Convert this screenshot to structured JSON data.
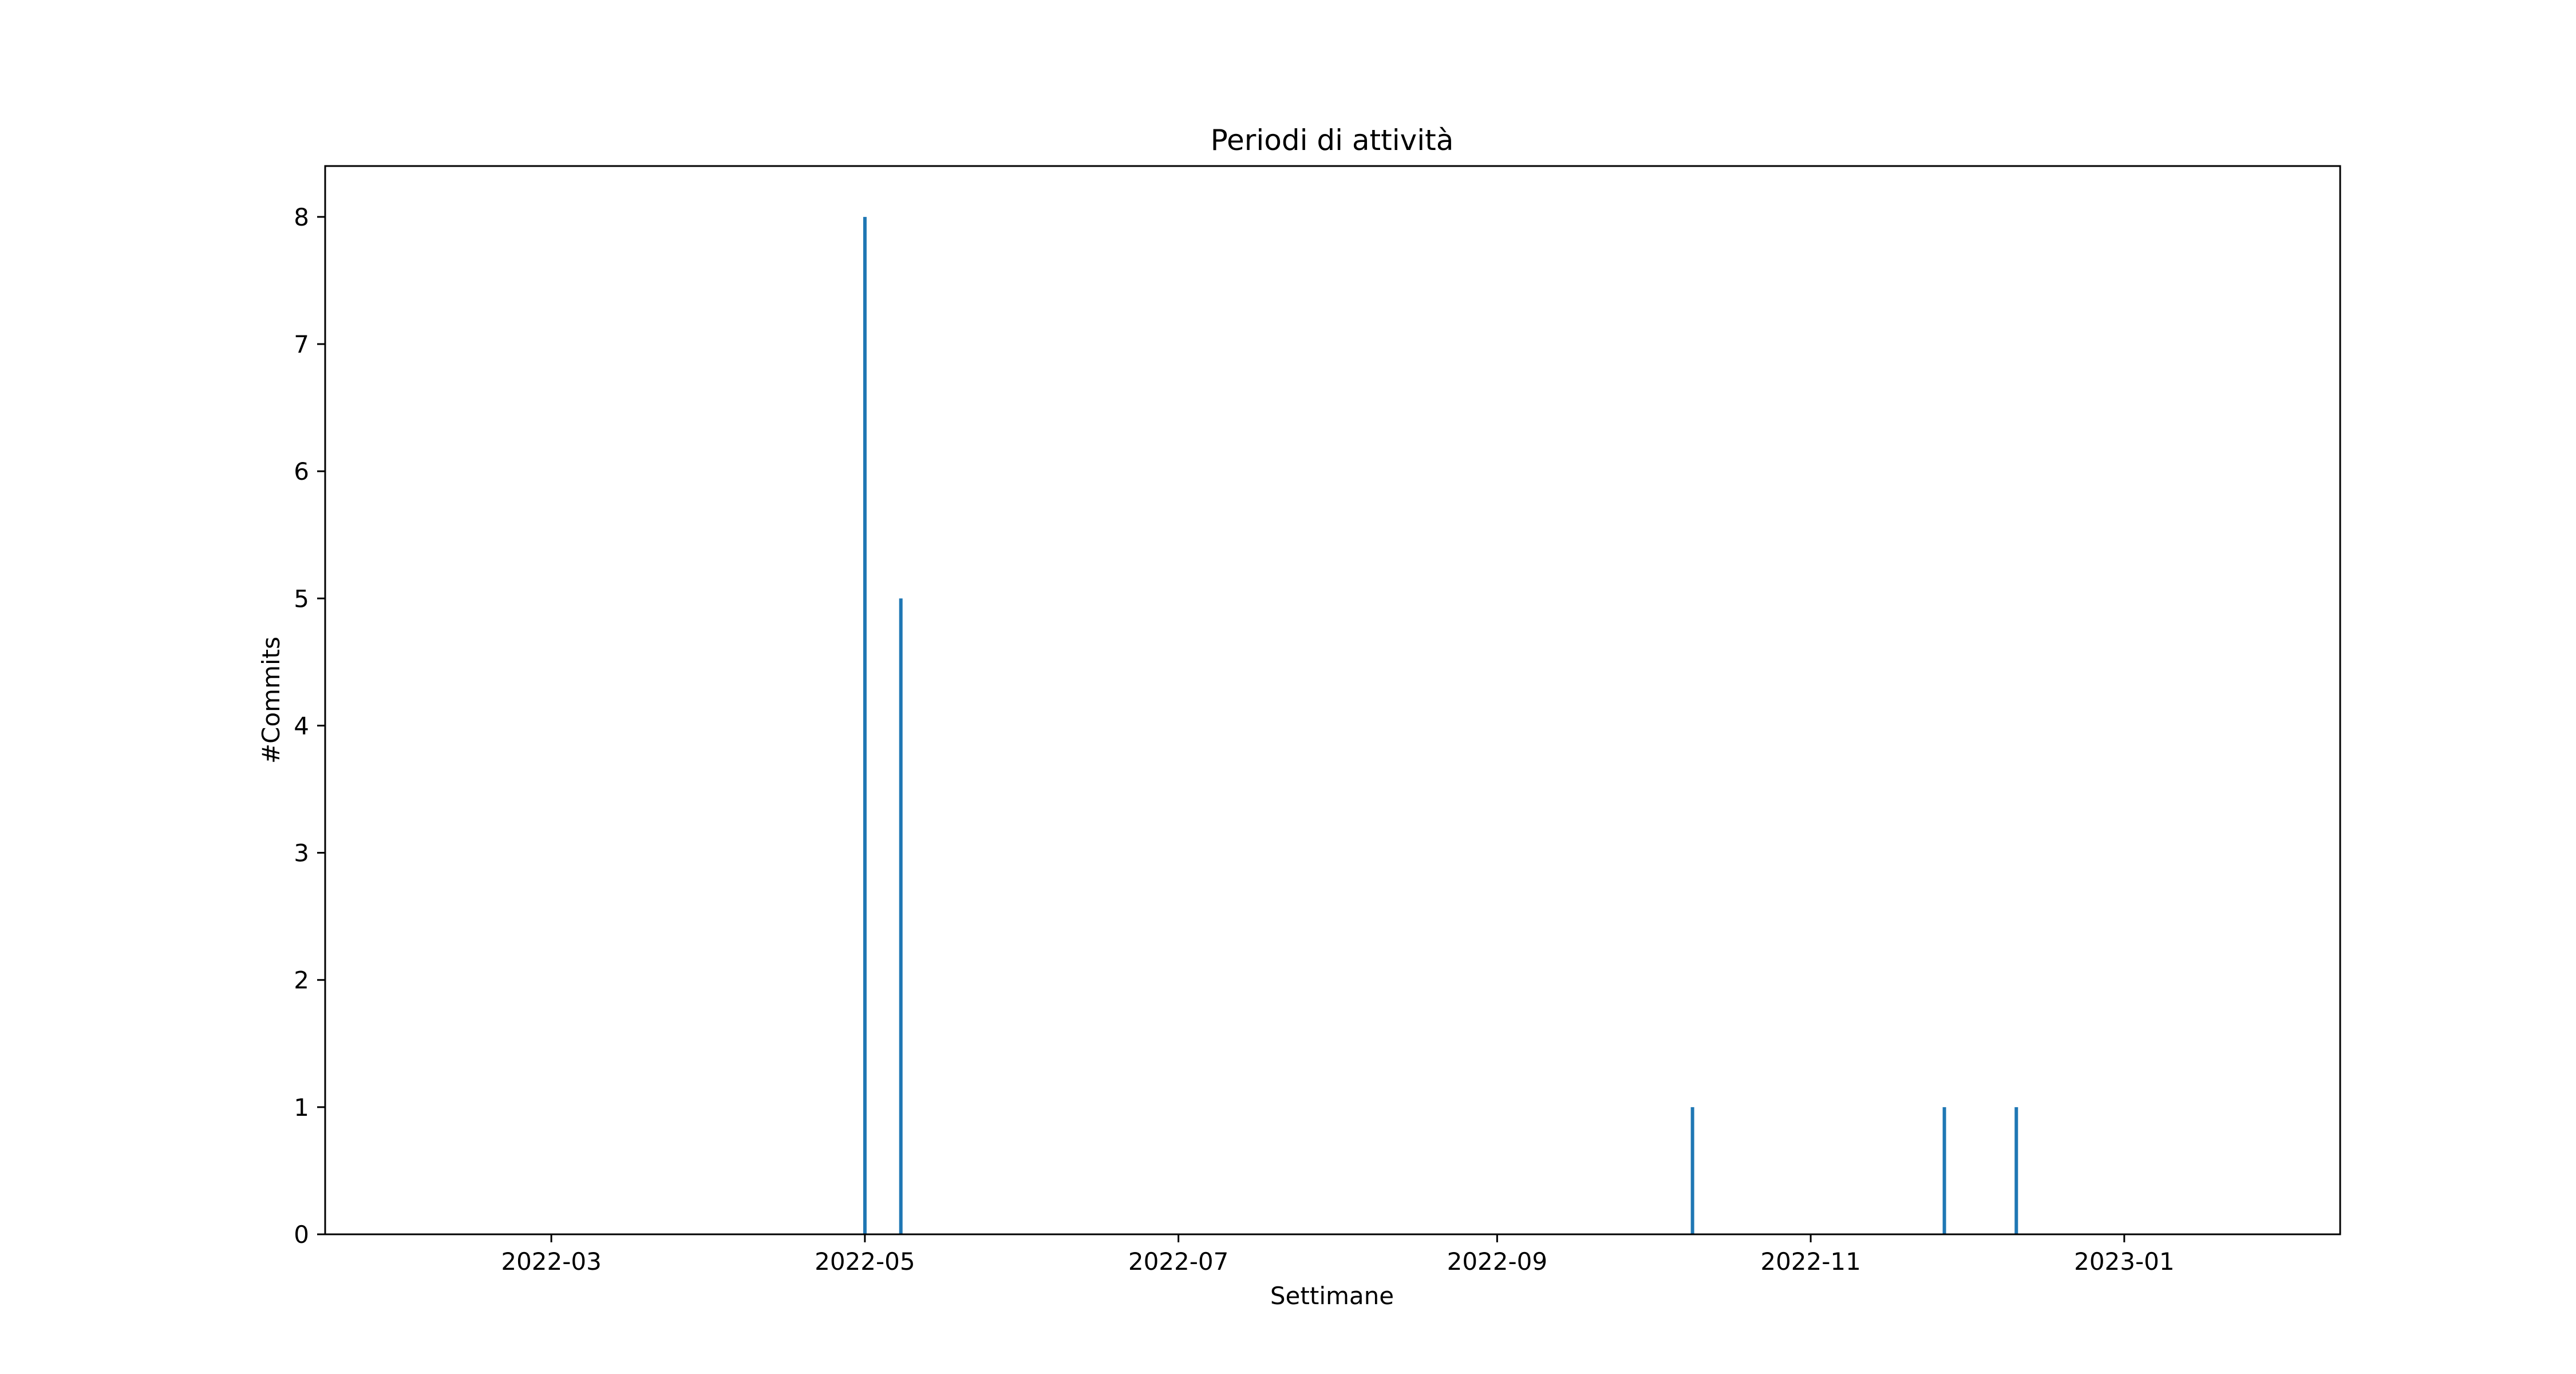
{
  "chart_data": {
    "type": "bar",
    "title": "Periodi di attività",
    "xlabel": "Settimane",
    "ylabel": "#Commits",
    "x_type": "date",
    "xlim": [
      "2022-01-16",
      "2023-02-12"
    ],
    "ylim": [
      0,
      8.4
    ],
    "x_ticks": [
      "2022-03-01",
      "2022-05-01",
      "2022-07-01",
      "2022-09-01",
      "2022-11-01",
      "2023-01-01"
    ],
    "x_tick_labels": [
      "2022-03",
      "2022-05",
      "2022-07",
      "2022-09",
      "2022-11",
      "2023-01"
    ],
    "y_ticks": [
      0,
      1,
      2,
      3,
      4,
      5,
      6,
      7,
      8
    ],
    "y_tick_labels": [
      "0",
      "1",
      "2",
      "3",
      "4",
      "5",
      "6",
      "7",
      "8"
    ],
    "grid": false,
    "legend": "none",
    "bar_color": "#1f77b4",
    "series": [
      {
        "x": [
          "2022-05-01",
          "2022-05-08",
          "2022-10-09",
          "2022-11-27",
          "2022-12-11"
        ],
        "values": [
          8,
          5,
          1,
          1,
          1
        ]
      }
    ]
  }
}
